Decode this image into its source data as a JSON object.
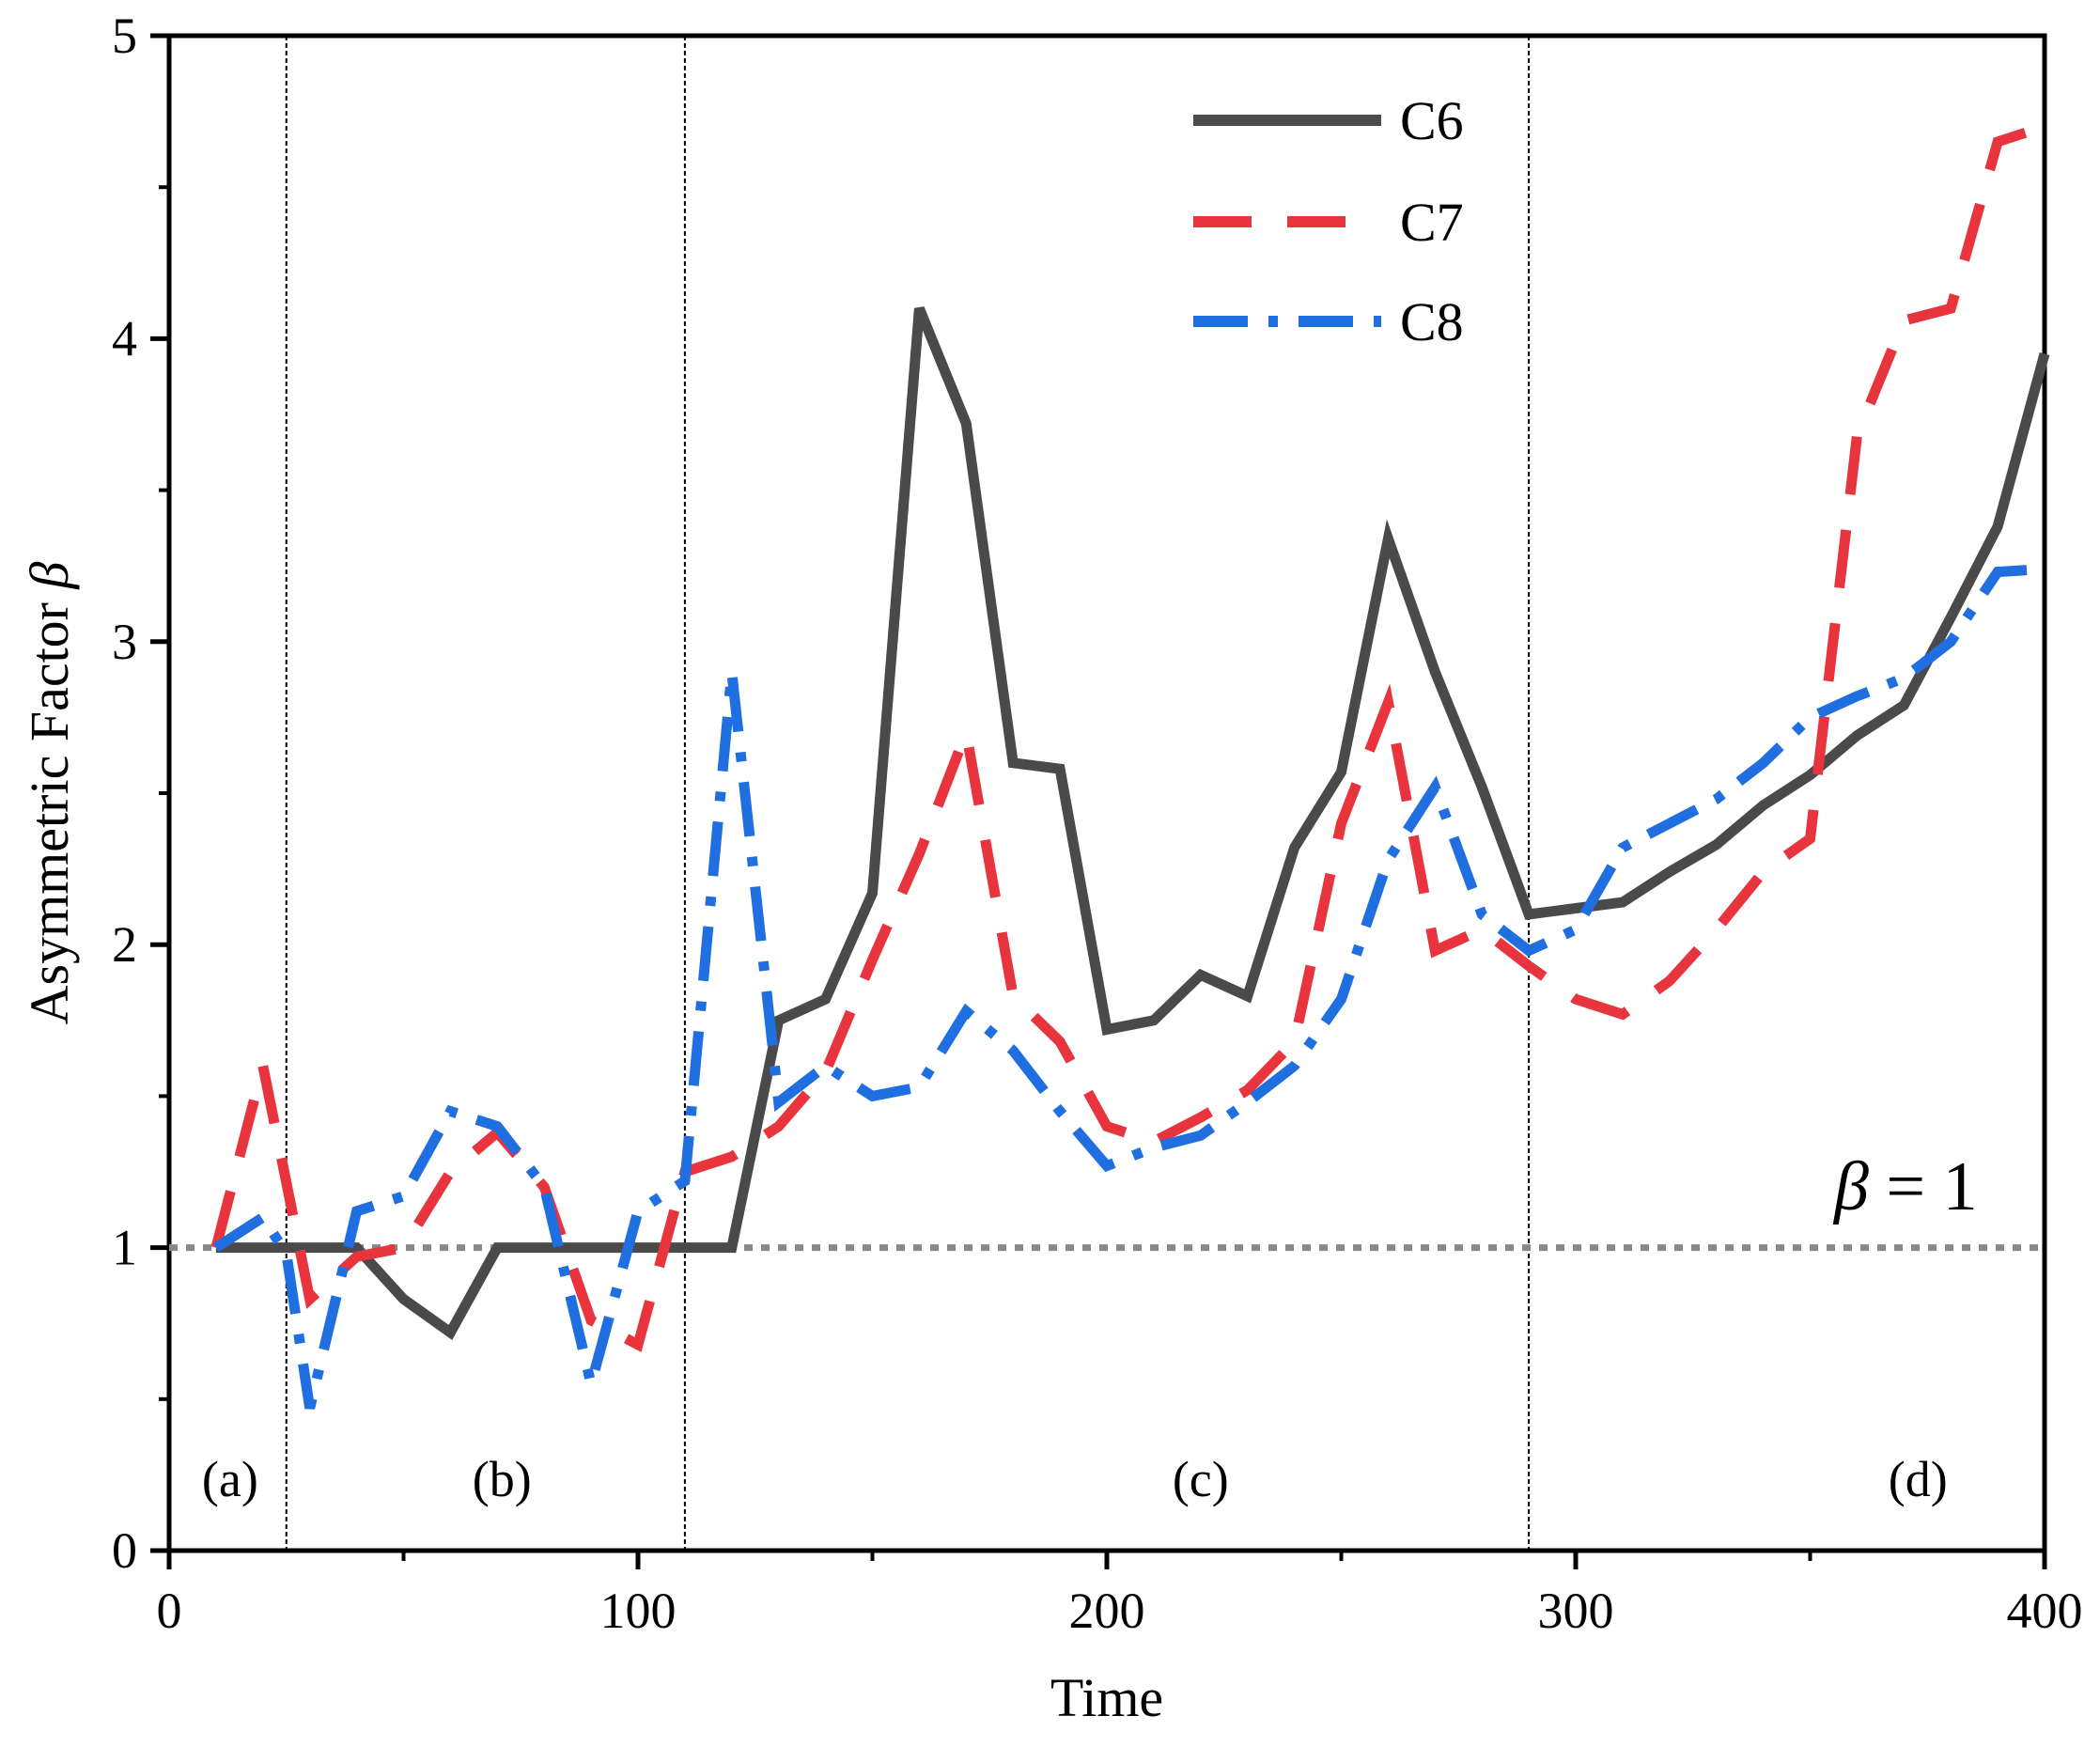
{
  "chart_data": {
    "type": "line",
    "title": "",
    "xlabel": "Time",
    "ylabel_text": "Asymmetric Factor ",
    "ylabel_symbol": "β",
    "xlim": [
      0,
      400
    ],
    "ylim": [
      0,
      5
    ],
    "xticks": [
      0,
      100,
      200,
      300,
      400
    ],
    "yticks": [
      0,
      1,
      2,
      3,
      4,
      5
    ],
    "y_minor_step": 0.5,
    "x_minor_step": 50,
    "grid": false,
    "legend_position": "top-center",
    "reference_line": {
      "y": 1,
      "label_symbol": "β",
      "label_text": " = 1",
      "color": "#888888",
      "style": "dotted"
    },
    "phase_boundaries": [
      25,
      110,
      290
    ],
    "phase_labels": [
      {
        "text": "(a)",
        "x": 13
      },
      {
        "text": "(b)",
        "x": 71
      },
      {
        "text": "(c)",
        "x": 220
      },
      {
        "text": "(d)",
        "x": 373
      }
    ],
    "series": [
      {
        "name": "C6",
        "color": "#4a4a4a",
        "style": "solid",
        "x": [
          10,
          20,
          30,
          40,
          50,
          60,
          70,
          80,
          90,
          100,
          110,
          120,
          130,
          140,
          150,
          160,
          170,
          180,
          190,
          200,
          210,
          220,
          230,
          240,
          250,
          260,
          270,
          280,
          290,
          300,
          310,
          320,
          330,
          340,
          350,
          360,
          370,
          380,
          390,
          400
        ],
        "values": [
          1.0,
          1.0,
          1.0,
          1.0,
          0.83,
          0.72,
          1.0,
          1.0,
          1.0,
          1.0,
          1.0,
          1.0,
          1.75,
          1.82,
          2.17,
          4.1,
          3.72,
          2.6,
          2.58,
          1.72,
          1.75,
          1.9,
          1.83,
          2.32,
          2.57,
          3.34,
          2.9,
          2.52,
          2.1,
          2.12,
          2.14,
          2.24,
          2.33,
          2.46,
          2.56,
          2.69,
          2.79,
          3.08,
          3.38,
          3.95
        ]
      },
      {
        "name": "C7",
        "color": "#e8343d",
        "style": "dashed",
        "x": [
          10,
          20,
          30,
          40,
          50,
          60,
          70,
          80,
          90,
          100,
          110,
          120,
          130,
          140,
          150,
          160,
          170,
          180,
          190,
          200,
          210,
          220,
          230,
          240,
          250,
          260,
          270,
          280,
          290,
          300,
          310,
          320,
          330,
          340,
          350,
          360,
          370,
          380,
          390,
          400
        ],
        "values": [
          1.0,
          1.6,
          0.83,
          0.97,
          1.0,
          1.25,
          1.38,
          1.2,
          0.76,
          0.68,
          1.25,
          1.3,
          1.4,
          1.58,
          1.95,
          2.3,
          2.7,
          1.83,
          1.68,
          1.4,
          1.35,
          1.43,
          1.52,
          1.68,
          2.4,
          2.8,
          1.98,
          2.05,
          1.93,
          1.82,
          1.77,
          1.88,
          2.05,
          2.24,
          2.35,
          3.68,
          4.06,
          4.1,
          4.65,
          4.7
        ]
      },
      {
        "name": "C8",
        "color": "#1f6fe0",
        "style": "dashdot",
        "x": [
          10,
          20,
          25,
          30,
          40,
          50,
          60,
          70,
          80,
          90,
          100,
          110,
          120,
          130,
          140,
          150,
          160,
          170,
          180,
          190,
          200,
          210,
          220,
          230,
          240,
          250,
          260,
          270,
          280,
          290,
          300,
          310,
          320,
          330,
          340,
          350,
          360,
          370,
          380,
          390,
          400
        ],
        "values": [
          1.0,
          1.1,
          0.98,
          0.47,
          1.12,
          1.17,
          1.45,
          1.4,
          1.2,
          0.55,
          1.12,
          1.22,
          2.9,
          1.48,
          1.6,
          1.5,
          1.53,
          1.78,
          1.65,
          1.45,
          1.27,
          1.33,
          1.37,
          1.48,
          1.6,
          1.82,
          2.28,
          2.52,
          2.1,
          1.98,
          2.05,
          2.32,
          2.4,
          2.48,
          2.6,
          2.75,
          2.82,
          2.88,
          3.0,
          3.23,
          3.24
        ]
      }
    ]
  }
}
